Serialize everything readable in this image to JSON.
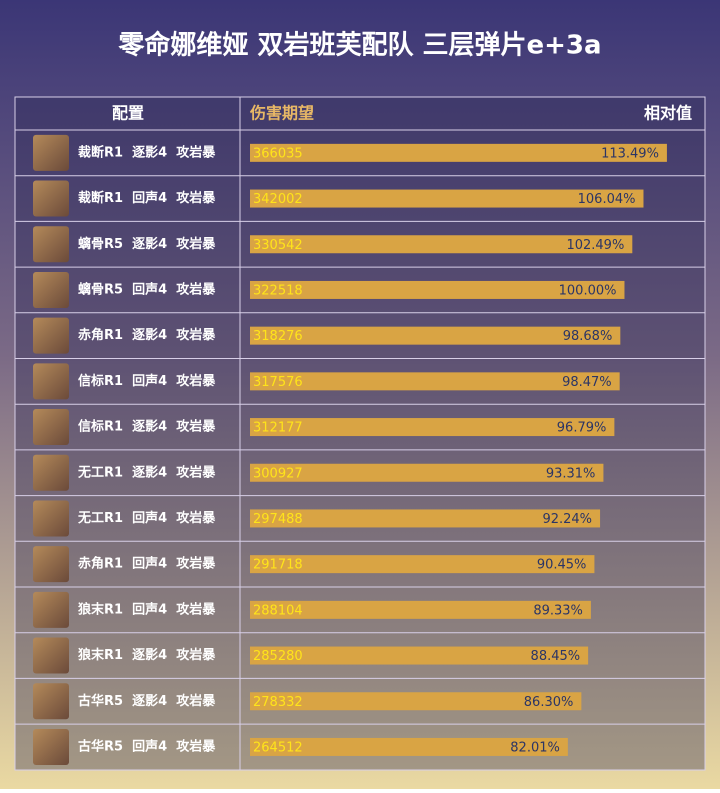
{
  "chart_data": {
    "type": "bar",
    "title": "零命娜维娅 双岩班芙配队 三层弹片e+3a",
    "category_header": "配置",
    "categories": [
      "裁断R1  逐影4  攻岩暴",
      "裁断R1  回声4  攻岩暴",
      "螭骨R5  逐影4  攻岩暴",
      "螭骨R5  回声4  攻岩暴",
      "赤角R1  逐影4  攻岩暴",
      "信标R1  回声4  攻岩暴",
      "信标R1  逐影4  攻岩暴",
      "无工R1  逐影4  攻岩暴",
      "无工R1  回声4  攻岩暴",
      "赤角R1  回声4  攻岩暴",
      "狼末R1  回声4  攻岩暴",
      "狼末R1  逐影4  攻岩暴",
      "古华R5  逐影4  攻岩暴",
      "古华R5  回声4  攻岩暴"
    ],
    "series": [
      {
        "name": "伤害期望",
        "color": "#ffe41a",
        "values": [
          366035,
          342002,
          330542,
          322518,
          318276,
          317576,
          312177,
          300927,
          297488,
          291718,
          288104,
          285280,
          278332,
          264512
        ]
      },
      {
        "name": "相对值",
        "color": "#d9a444",
        "values": [
          113.49,
          106.04,
          102.49,
          100.0,
          98.68,
          98.47,
          96.79,
          93.31,
          92.24,
          90.45,
          89.33,
          88.45,
          86.3,
          82.01
        ],
        "value_labels": [
          "113.49%",
          "106.04%",
          "102.49%",
          "100.00%",
          "98.68%",
          "98.47%",
          "96.79%",
          "93.31%",
          "92.24%",
          "90.45%",
          "89.33%",
          "88.45%",
          "86.30%",
          "82.01%"
        ]
      }
    ],
    "xlim": [
      -19,
      124
    ]
  }
}
